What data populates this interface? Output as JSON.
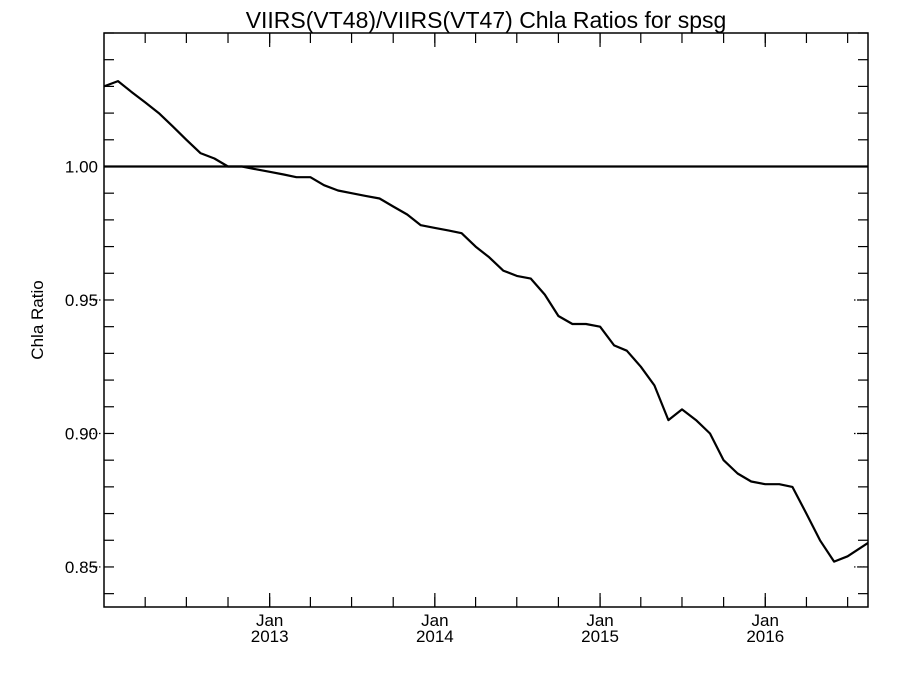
{
  "chart_data": {
    "type": "line",
    "title": "VIIRS(VT48)/VIIRS(VT47)  Chla Ratios for spsg",
    "xlabel": "",
    "ylabel": "Chla Ratio",
    "xlim": [
      "2012-01-01",
      "2016-08-15"
    ],
    "ylim": [
      0.835,
      1.05
    ],
    "y_ticks": [
      0.85,
      0.9,
      0.95,
      1.0
    ],
    "y_tick_labels": [
      "0.85",
      "0.90",
      "0.95",
      "1.00"
    ],
    "x_ticks": [
      "2013-01-01",
      "2014-01-01",
      "2015-01-01",
      "2016-01-01"
    ],
    "x_tick_labels": [
      {
        "month": "Jan",
        "year": "2013"
      },
      {
        "month": "Jan",
        "year": "2014"
      },
      {
        "month": "Jan",
        "year": "2015"
      },
      {
        "month": "Jan",
        "year": "2016"
      }
    ],
    "reference_line": 1.0,
    "grid": false,
    "series": [
      {
        "x": [
          "2012-01-01",
          "2012-02-01",
          "2012-03-01",
          "2012-04-01",
          "2012-05-01",
          "2012-06-01",
          "2012-07-01",
          "2012-08-01",
          "2012-09-01",
          "2012-10-01",
          "2012-11-01",
          "2012-12-01",
          "2013-01-01",
          "2013-02-01",
          "2013-03-01",
          "2013-04-01",
          "2013-05-01",
          "2013-06-01",
          "2013-07-01",
          "2013-08-01",
          "2013-09-01",
          "2013-10-01",
          "2013-11-01",
          "2013-12-01",
          "2014-01-01",
          "2014-02-01",
          "2014-03-01",
          "2014-04-01",
          "2014-05-01",
          "2014-06-01",
          "2014-07-01",
          "2014-08-01",
          "2014-09-01",
          "2014-10-01",
          "2014-11-01",
          "2014-12-01",
          "2015-01-01",
          "2015-02-01",
          "2015-03-01",
          "2015-04-01",
          "2015-05-01",
          "2015-06-01",
          "2015-07-01",
          "2015-08-01",
          "2015-09-01",
          "2015-10-01",
          "2015-11-01",
          "2015-12-01",
          "2016-01-01",
          "2016-02-01",
          "2016-03-01",
          "2016-04-01",
          "2016-05-01",
          "2016-06-01",
          "2016-07-01",
          "2016-08-15"
        ],
        "values": [
          1.03,
          1.032,
          1.028,
          1.024,
          1.02,
          1.015,
          1.01,
          1.005,
          1.003,
          1.0,
          1.0,
          0.999,
          0.998,
          0.997,
          0.996,
          0.996,
          0.993,
          0.991,
          0.99,
          0.989,
          0.988,
          0.985,
          0.982,
          0.978,
          0.977,
          0.976,
          0.975,
          0.97,
          0.966,
          0.961,
          0.959,
          0.958,
          0.952,
          0.944,
          0.941,
          0.941,
          0.94,
          0.933,
          0.931,
          0.925,
          0.918,
          0.905,
          0.909,
          0.905,
          0.9,
          0.89,
          0.885,
          0.882,
          0.881,
          0.881,
          0.88,
          0.87,
          0.86,
          0.852,
          0.854,
          0.859
        ]
      }
    ]
  }
}
